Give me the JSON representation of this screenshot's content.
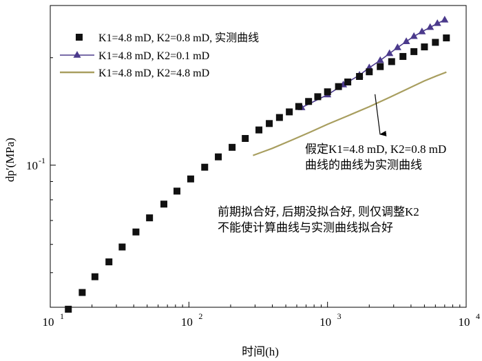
{
  "chart_data": {
    "type": "scatter",
    "xscale": "log",
    "yscale": "log",
    "xlim": [
      10,
      10000
    ],
    "ylim": [
      0.04,
      0.28
    ],
    "xlabel": "时间(h)",
    "ylabel": "dp′(MPa)",
    "x_ticks": [
      {
        "value": 10,
        "base": "10",
        "exp": "1"
      },
      {
        "value": 100,
        "base": "10",
        "exp": "2"
      },
      {
        "value": 1000,
        "base": "10",
        "exp": "3"
      },
      {
        "value": 10000,
        "base": "10",
        "exp": "4"
      }
    ],
    "y_ticks": [
      {
        "value": 0.1,
        "base": "10",
        "exp": "-1"
      }
    ],
    "legend_position": "top-left",
    "series": [
      {
        "name": "K1=4.8 mD, K2=0.8 mD, 实测曲线",
        "style": "markers",
        "marker": "square",
        "color": "#111111",
        "x": [
          13.5,
          17,
          21,
          26.5,
          33,
          41.5,
          52,
          66,
          82,
          103,
          130,
          163,
          205,
          255,
          320,
          380,
          450,
          530,
          620,
          730,
          850,
          1000,
          1200,
          1400,
          1700,
          2000,
          2400,
          2900,
          3500,
          4200,
          5000,
          6000,
          7200
        ],
        "y": [
          0.0395,
          0.044,
          0.0487,
          0.0536,
          0.059,
          0.065,
          0.0712,
          0.0778,
          0.0846,
          0.0915,
          0.0987,
          0.1055,
          0.1122,
          0.1188,
          0.1255,
          0.1308,
          0.136,
          0.141,
          0.146,
          0.1508,
          0.1555,
          0.1605,
          0.166,
          0.171,
          0.1772,
          0.1826,
          0.1888,
          0.195,
          0.2016,
          0.208,
          0.2144,
          0.2208,
          0.2272
        ]
      },
      {
        "name": "K1=4.8 mD, K2=0.1 mD",
        "style": "line+markers",
        "marker": "triangle",
        "color": "#4b3a8c",
        "x": [
          650,
          1000,
          1300,
          1700,
          2000,
          2400,
          2800,
          3200,
          3700,
          4200,
          4800,
          5500,
          6200,
          7000
        ],
        "y": [
          0.145,
          0.1575,
          0.168,
          0.1788,
          0.1875,
          0.1965,
          0.2055,
          0.2135,
          0.222,
          0.2295,
          0.2365,
          0.2432,
          0.2495,
          0.2552
        ]
      },
      {
        "name": "K1=4.8 mD, K2=4.8 mD",
        "style": "line",
        "color": "#a89e5f",
        "x": [
          290,
          400,
          550,
          750,
          1000,
          1400,
          2000,
          2800,
          3800,
          5000,
          6200,
          7200
        ],
        "y": [
          0.1065,
          0.1115,
          0.1175,
          0.1238,
          0.1302,
          0.1375,
          0.1458,
          0.1548,
          0.1638,
          0.1722,
          0.1782,
          0.1822
        ]
      }
    ],
    "annotations": [
      {
        "id": "assumed",
        "lines": [
          "假定K1=4.8 mD, K2=0.8 mD",
          "曲线的曲线为实测曲线"
        ],
        "arrow_to": {
          "x": 2200,
          "y": 0.158
        }
      },
      {
        "id": "conclusion",
        "lines": [
          "前期拟合好, 后期没拟合好, 则仅调整K2",
          "不能使计算曲线与实测曲线拟合好"
        ]
      }
    ]
  }
}
